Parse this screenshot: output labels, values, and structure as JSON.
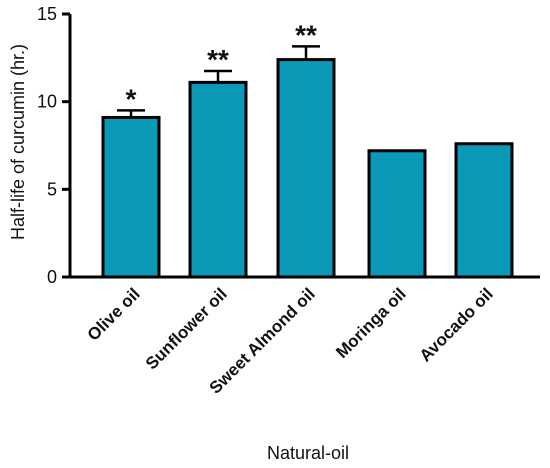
{
  "chart_data": {
    "type": "bar",
    "categories": [
      "Olive oil",
      "Sunflower oil",
      "Sweet Almond oil",
      "Moringa oil",
      "Avocado oil"
    ],
    "values": [
      9.1,
      11.1,
      12.4,
      7.2,
      7.6
    ],
    "errors": [
      0.4,
      0.65,
      0.75,
      0,
      0
    ],
    "significance": [
      "*",
      "**",
      "**",
      "",
      ""
    ],
    "xlabel": "Natural-oil",
    "ylabel": "Half-life of curcumin (hr.)",
    "ylim": [
      0,
      15
    ],
    "yticks": [
      "0",
      "5",
      "10",
      "15"
    ],
    "bar_color": "#0a9ab8",
    "edge_color": "#000000",
    "grid": false,
    "legend": "none"
  }
}
